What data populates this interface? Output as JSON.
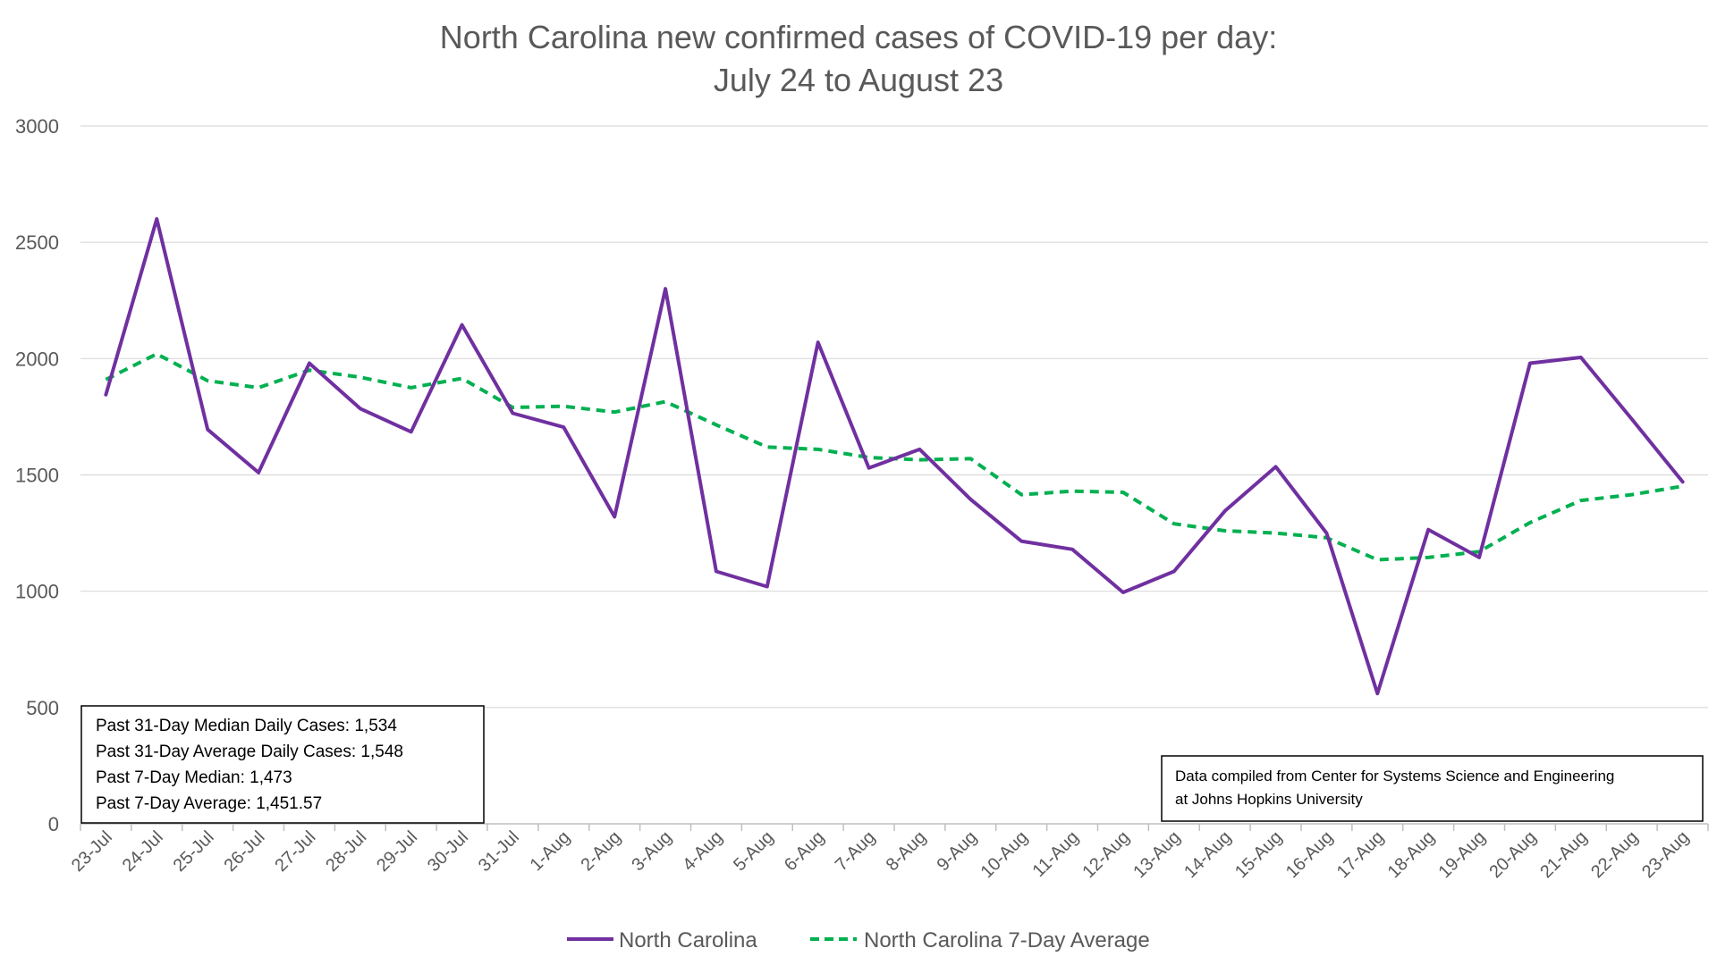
{
  "chart_data": {
    "type": "line",
    "title": [
      "North Carolina new confirmed cases of COVID-19 per day:",
      "July 24 to August 23"
    ],
    "xlabel": "",
    "ylabel": "",
    "ylim": [
      0,
      3000
    ],
    "yticks": [
      0,
      500,
      1000,
      1500,
      2000,
      2500,
      3000
    ],
    "grid": true,
    "legend_position": "bottom",
    "categories": [
      "23-Jul",
      "24-Jul",
      "25-Jul",
      "26-Jul",
      "27-Jul",
      "28-Jul",
      "29-Jul",
      "30-Jul",
      "31-Jul",
      "1-Aug",
      "2-Aug",
      "3-Aug",
      "4-Aug",
      "5-Aug",
      "6-Aug",
      "7-Aug",
      "8-Aug",
      "9-Aug",
      "10-Aug",
      "11-Aug",
      "12-Aug",
      "13-Aug",
      "14-Aug",
      "15-Aug",
      "16-Aug",
      "17-Aug",
      "18-Aug",
      "19-Aug",
      "20-Aug",
      "21-Aug",
      "22-Aug",
      "23-Aug"
    ],
    "series": [
      {
        "name": "North Carolina",
        "color": "#7030a0",
        "style": "solid",
        "values": [
          1845,
          2600,
          1695,
          1510,
          1980,
          1785,
          1685,
          2145,
          1765,
          1705,
          1320,
          2300,
          1085,
          1020,
          2070,
          1530,
          1610,
          1395,
          1215,
          1180,
          995,
          1085,
          1345,
          1535,
          1250,
          560,
          1265,
          1145,
          1980,
          2005,
          1740,
          1470
        ]
      },
      {
        "name": "North Carolina 7-Day Average",
        "color": "#00b050",
        "style": "dashed",
        "values": [
          1910,
          2020,
          1905,
          1875,
          1950,
          1920,
          1875,
          1915,
          1790,
          1795,
          1770,
          1815,
          1715,
          1620,
          1610,
          1575,
          1565,
          1570,
          1415,
          1430,
          1425,
          1290,
          1260,
          1250,
          1230,
          1135,
          1145,
          1170,
          1295,
          1390,
          1415,
          1451.57
        ]
      }
    ],
    "annotations": [
      {
        "id": "stats-box",
        "lines": [
          "Past 31-Day Median Daily Cases: 1,534",
          "Past 31-Day Average Daily Cases: 1,548",
          "Past 7-Day Median: 1,473",
          "Past 7-Day Average: 1,451.57"
        ]
      },
      {
        "id": "source-box",
        "lines": [
          "Data compiled from Center for Systems Science and Engineering",
          "at Johns Hopkins University"
        ]
      }
    ]
  }
}
